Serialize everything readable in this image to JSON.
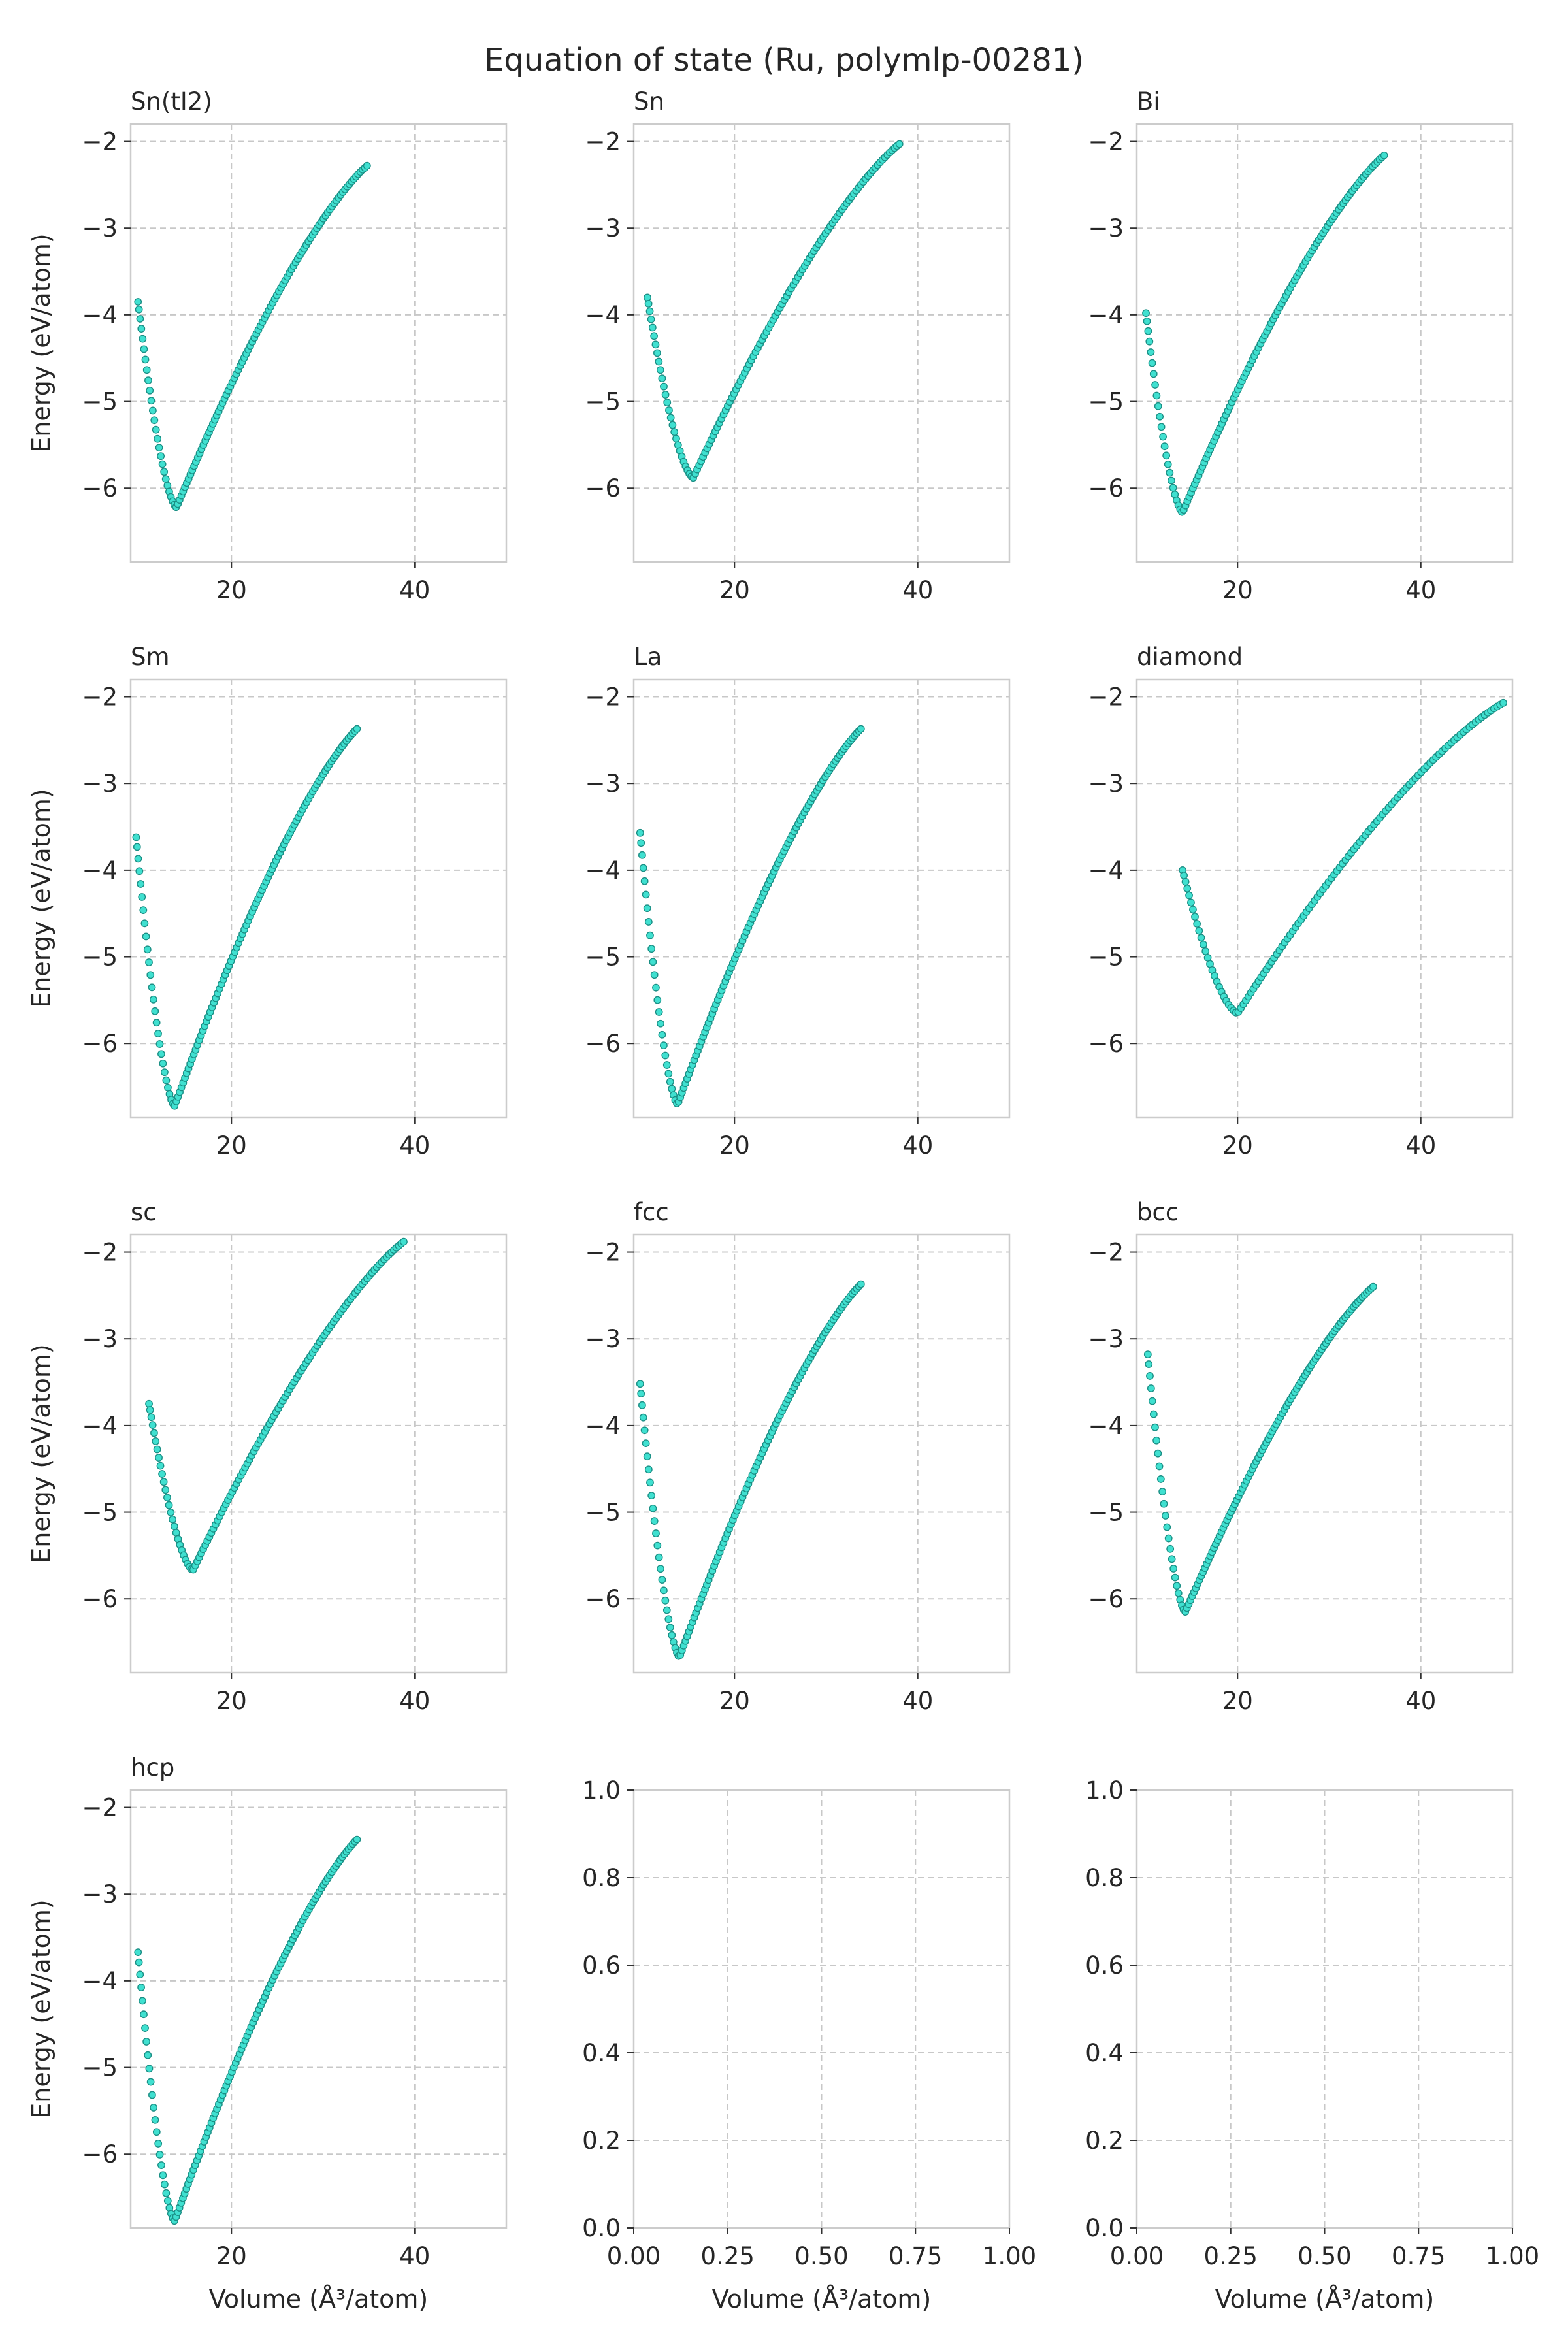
{
  "figure": {
    "title": "Equation of state (Ru, polymlp-00281)",
    "xlabel": "Volume (Å³/atom)",
    "ylabel": "Energy (eV/atom)",
    "point_color": "#40E0D0",
    "point_edge_color": "#1a8f85"
  },
  "chart_data": [
    {
      "type": "scatter",
      "title": "Sn(tI2)",
      "xlim": [
        9,
        50
      ],
      "ylim": [
        -6.85,
        -1.8
      ],
      "xticks": [
        20,
        40
      ],
      "yticks": [
        -6,
        -5,
        -4,
        -3,
        -2
      ],
      "curve": {
        "v0": 14.0,
        "e0": -6.22,
        "vmin": 9.8,
        "emin_v": -3.85,
        "vmax": 34.8,
        "emax_v": -2.28
      }
    },
    {
      "type": "scatter",
      "title": "Sn",
      "xlim": [
        9,
        50
      ],
      "ylim": [
        -6.85,
        -1.8
      ],
      "xticks": [
        20,
        40
      ],
      "yticks": [
        -6,
        -5,
        -4,
        -3,
        -2
      ],
      "curve": {
        "v0": 15.5,
        "e0": -5.88,
        "vmin": 10.5,
        "emin_v": -3.8,
        "vmax": 38.0,
        "emax_v": -2.03
      }
    },
    {
      "type": "scatter",
      "title": "Bi",
      "xlim": [
        9,
        50
      ],
      "ylim": [
        -6.85,
        -1.8
      ],
      "xticks": [
        20,
        40
      ],
      "yticks": [
        -6,
        -5,
        -4,
        -3,
        -2
      ],
      "curve": {
        "v0": 14.0,
        "e0": -6.28,
        "vmin": 10.0,
        "emin_v": -3.98,
        "vmax": 36.0,
        "emax_v": -2.16
      }
    },
    {
      "type": "scatter",
      "title": "Sm",
      "xlim": [
        9,
        50
      ],
      "ylim": [
        -6.85,
        -1.8
      ],
      "xticks": [
        20,
        40
      ],
      "yticks": [
        -6,
        -5,
        -4,
        -3,
        -2
      ],
      "curve": {
        "v0": 13.8,
        "e0": -6.72,
        "vmin": 9.6,
        "emin_v": -3.62,
        "vmax": 33.7,
        "emax_v": -2.37
      }
    },
    {
      "type": "scatter",
      "title": "La",
      "xlim": [
        9,
        50
      ],
      "ylim": [
        -6.85,
        -1.8
      ],
      "xticks": [
        20,
        40
      ],
      "yticks": [
        -6,
        -5,
        -4,
        -3,
        -2
      ],
      "curve": {
        "v0": 13.8,
        "e0": -6.7,
        "vmin": 9.7,
        "emin_v": -3.57,
        "vmax": 33.8,
        "emax_v": -2.37
      }
    },
    {
      "type": "scatter",
      "title": "diamond",
      "xlim": [
        9,
        50
      ],
      "ylim": [
        -6.85,
        -1.8
      ],
      "xticks": [
        20,
        40
      ],
      "yticks": [
        -6,
        -5,
        -4,
        -3,
        -2
      ],
      "curve": {
        "v0": 20.0,
        "e0": -5.65,
        "vmin": 14.0,
        "emin_v": -4.0,
        "vmax": 49.0,
        "emax_v": -2.07
      }
    },
    {
      "type": "scatter",
      "title": "sc",
      "xlim": [
        9,
        50
      ],
      "ylim": [
        -6.85,
        -1.8
      ],
      "xticks": [
        20,
        40
      ],
      "yticks": [
        -6,
        -5,
        -4,
        -3,
        -2
      ],
      "curve": {
        "v0": 15.8,
        "e0": -5.67,
        "vmin": 11.0,
        "emin_v": -3.75,
        "vmax": 38.8,
        "emax_v": -1.88
      }
    },
    {
      "type": "scatter",
      "title": "fcc",
      "xlim": [
        9,
        50
      ],
      "ylim": [
        -6.85,
        -1.8
      ],
      "xticks": [
        20,
        40
      ],
      "yticks": [
        -6,
        -5,
        -4,
        -3,
        -2
      ],
      "curve": {
        "v0": 14.0,
        "e0": -6.67,
        "vmin": 9.7,
        "emin_v": -3.52,
        "vmax": 33.8,
        "emax_v": -2.37
      }
    },
    {
      "type": "scatter",
      "title": "bcc",
      "xlim": [
        9,
        50
      ],
      "ylim": [
        -6.85,
        -1.8
      ],
      "xticks": [
        20,
        40
      ],
      "yticks": [
        -6,
        -5,
        -4,
        -3,
        -2
      ],
      "curve": {
        "v0": 14.3,
        "e0": -6.15,
        "vmin": 10.2,
        "emin_v": -3.18,
        "vmax": 34.8,
        "emax_v": -2.4
      }
    },
    {
      "type": "scatter",
      "title": "hcp",
      "xlim": [
        9,
        50
      ],
      "ylim": [
        -6.85,
        -1.8
      ],
      "xticks": [
        20,
        40
      ],
      "yticks": [
        -6,
        -5,
        -4,
        -3,
        -2
      ],
      "curve": {
        "v0": 13.8,
        "e0": -6.77,
        "vmin": 9.8,
        "emin_v": -3.67,
        "vmax": 33.7,
        "emax_v": -2.37
      }
    },
    {
      "type": "scatter",
      "title": "",
      "empty": true,
      "xlim": [
        0,
        1
      ],
      "ylim": [
        0,
        1
      ],
      "xticks": [
        0.0,
        0.25,
        0.5,
        0.75,
        1.0
      ],
      "yticks": [
        0.0,
        0.2,
        0.4,
        0.6,
        0.8,
        1.0
      ]
    },
    {
      "type": "scatter",
      "title": "",
      "empty": true,
      "xlim": [
        0,
        1
      ],
      "ylim": [
        0,
        1
      ],
      "xticks": [
        0.0,
        0.25,
        0.5,
        0.75,
        1.0
      ],
      "yticks": [
        0.0,
        0.2,
        0.4,
        0.6,
        0.8,
        1.0
      ]
    }
  ]
}
